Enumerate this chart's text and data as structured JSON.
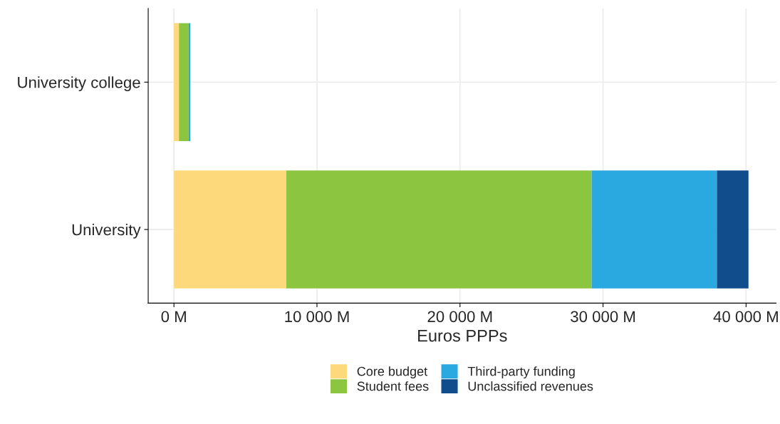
{
  "chart_data": {
    "type": "bar",
    "orientation": "horizontal",
    "stacked": true,
    "xlabel": "Euros PPPs",
    "categories": [
      "University college",
      "University"
    ],
    "series": [
      {
        "name": "Core budget",
        "color": "#fed97c",
        "values": [
          350,
          7850
        ]
      },
      {
        "name": "Student fees",
        "color": "#8cc640",
        "values": [
          680,
          21350
        ]
      },
      {
        "name": "Third-party funding",
        "color": "#29a9e0",
        "values": [
          120,
          8760
        ]
      },
      {
        "name": "Unclassified revenues",
        "color": "#114c8c",
        "values": [
          null,
          2210
        ]
      }
    ],
    "xlim": [
      -1800,
      42100
    ],
    "xticks": [
      {
        "value": 0,
        "label": "0 M"
      },
      {
        "value": 10000,
        "label": "10 000 M"
      },
      {
        "value": 20000,
        "label": "20 000 M"
      },
      {
        "value": 30000,
        "label": "30 000 M"
      },
      {
        "value": 40000,
        "label": "40 000 M"
      }
    ],
    "grid": true,
    "legend": "bottom"
  }
}
